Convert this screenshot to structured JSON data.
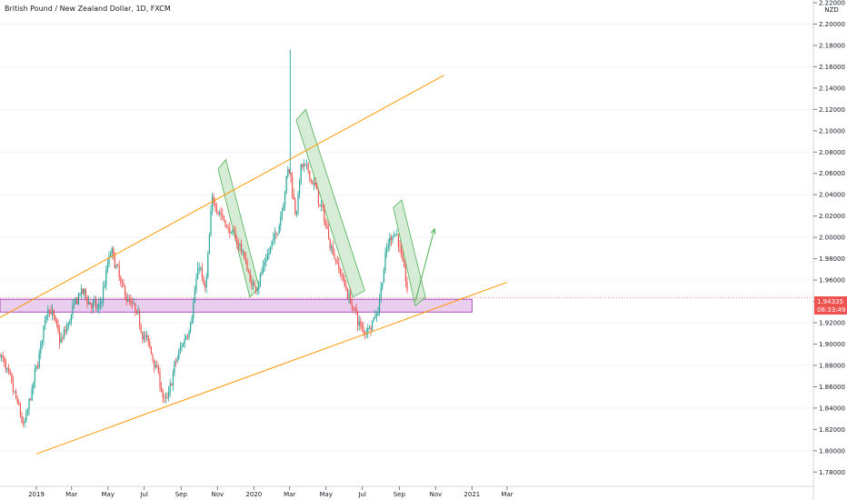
{
  "header": {
    "title": "British Pound / New Zealand Dollar, 1D, FXCM"
  },
  "price_axis": {
    "currency": "NZD"
  },
  "last_price": {
    "price": "1.94335",
    "countdown": "08:33:49"
  },
  "colors": {
    "up": "#26a69a",
    "down": "#ef5350",
    "channel": "#ff9800",
    "zone_fill": "#e1bee7",
    "zone_stroke": "#9c27b0",
    "pattern_fill": "#c8e6c9",
    "pattern_stroke": "#4caf50",
    "arrow": "#4caf50",
    "price_tag": "#ef5350"
  },
  "chart_data": {
    "type": "candlestick",
    "title": "British Pound / New Zealand Dollar, 1D, FXCM",
    "ylim": [
      1.77,
      2.22
    ],
    "x_ticks": [
      "2019",
      "Mar",
      "May",
      "Jul",
      "Sep",
      "Nov",
      "2020",
      "Mar",
      "May",
      "Jul",
      "Sep",
      "Nov",
      "2021",
      "Mar"
    ],
    "y_ticks": [
      "1.78000",
      "1.80000",
      "1.82000",
      "1.84000",
      "1.86000",
      "1.88000",
      "1.90000",
      "1.92000",
      "1.94000",
      "1.96000",
      "1.98000",
      "2.00000",
      "2.02000",
      "2.04000",
      "2.06000",
      "2.08000",
      "2.10000",
      "2.12000",
      "2.14000",
      "2.16000",
      "2.18000",
      "2.20000",
      "2.22000"
    ],
    "path": [
      [
        "2018-11-01",
        1.89
      ],
      [
        "2018-12-01",
        1.84
      ],
      [
        "2018-12-10",
        1.82
      ],
      [
        "2019-01-01",
        1.88
      ],
      [
        "2019-01-20",
        1.94
      ],
      [
        "2019-02-10",
        1.9
      ],
      [
        "2019-03-01",
        1.93
      ],
      [
        "2019-03-15",
        1.95
      ],
      [
        "2019-04-15",
        1.93
      ],
      [
        "2019-05-05",
        1.99
      ],
      [
        "2019-05-25",
        1.95
      ],
      [
        "2019-06-15",
        1.93
      ],
      [
        "2019-07-20",
        1.88
      ],
      [
        "2019-08-05",
        1.84
      ],
      [
        "2019-08-20",
        1.88
      ],
      [
        "2019-09-15",
        1.92
      ],
      [
        "2019-10-01",
        1.98
      ],
      [
        "2019-10-10",
        1.94
      ],
      [
        "2019-10-22",
        2.04
      ],
      [
        "2019-11-15",
        2.01
      ],
      [
        "2019-12-10",
        1.99
      ],
      [
        "2019-12-30",
        1.95
      ],
      [
        "2020-01-15",
        1.97
      ],
      [
        "2020-02-10",
        2.01
      ],
      [
        "2020-02-28",
        2.07
      ],
      [
        "2020-03-10",
        2.02
      ],
      [
        "2020-03-20",
        2.07
      ],
      [
        "2020-04-10",
        2.05
      ],
      [
        "2020-05-10",
        1.99
      ],
      [
        "2020-06-10",
        1.94
      ],
      [
        "2020-07-01",
        1.91
      ],
      [
        "2020-07-25",
        1.93
      ],
      [
        "2020-08-10",
        1.99
      ],
      [
        "2020-08-25",
        2.01
      ],
      [
        "2020-09-15",
        1.945
      ]
    ],
    "annotations": {
      "channel_upper": [
        [
          "2018-11-01",
          1.925
        ],
        [
          "2020-11-15",
          2.152
        ]
      ],
      "channel_lower": [
        [
          "2019-01-01",
          1.797
        ],
        [
          "2021-03-01",
          1.958
        ]
      ],
      "support_zone": {
        "from": "2018-11-01",
        "to": "2021-01-01",
        "y": [
          1.93,
          1.942
        ]
      },
      "flag_1": [
        [
          "2019-11-02",
          2.064
        ],
        [
          "2019-11-15",
          2.073
        ],
        [
          "2020-01-10",
          1.953
        ],
        [
          "2019-12-25",
          1.944
        ]
      ],
      "flag_2": [
        [
          "2020-03-12",
          2.11
        ],
        [
          "2020-03-28",
          2.12
        ],
        [
          "2020-07-05",
          1.95
        ],
        [
          "2020-06-15",
          1.944
        ]
      ],
      "flag_3": [
        [
          "2020-08-22",
          2.028
        ],
        [
          "2020-09-05",
          2.035
        ],
        [
          "2020-10-15",
          1.944
        ],
        [
          "2020-09-28",
          1.936
        ]
      ],
      "arrow": [
        [
          "2020-09-28",
          1.94
        ],
        [
          "2020-10-30",
          2.008
        ]
      ]
    }
  }
}
